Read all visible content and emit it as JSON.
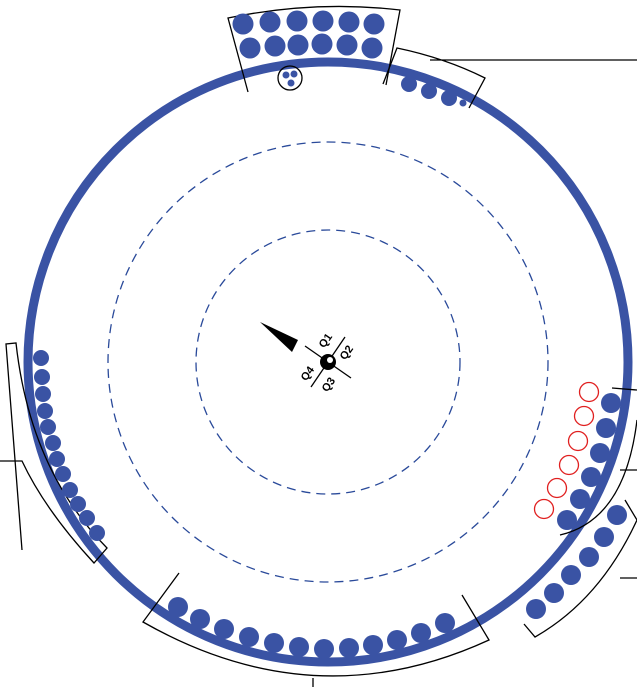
{
  "quadrants": {
    "q1": "Q1",
    "q2": "Q2",
    "q3": "Q3",
    "q4": "Q4"
  }
}
